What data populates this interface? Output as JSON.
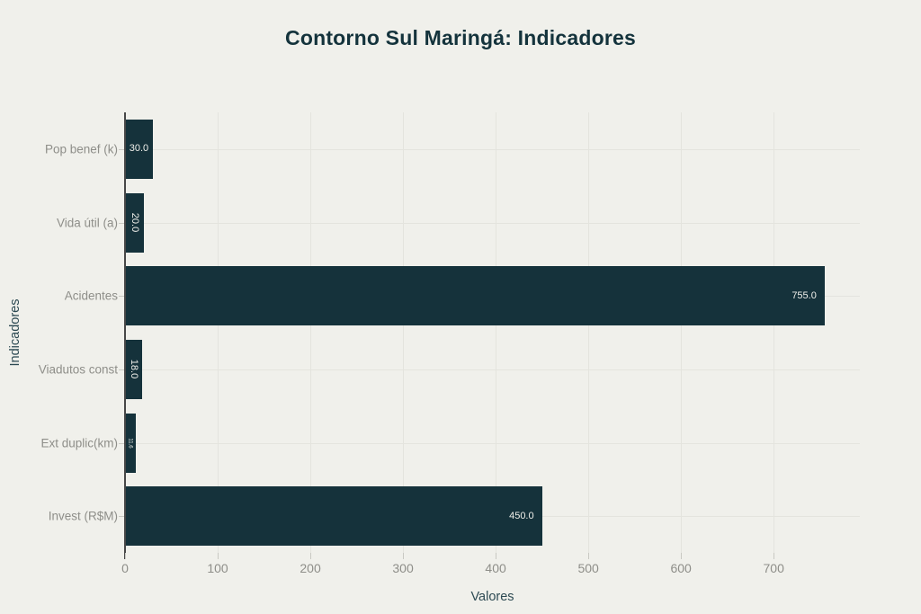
{
  "title": "Contorno Sul Maringá: Indicadores",
  "chart_data": {
    "type": "bar",
    "orientation": "horizontal",
    "title": "Contorno Sul Maringá: Indicadores",
    "xlabel": "Valores",
    "ylabel": "Indicadores",
    "categories": [
      "Pop benef (k)",
      "Vida útil (a)",
      "Acidentes",
      "Viadutos const",
      "Ext duplic(km)",
      "Invest (R$M)"
    ],
    "values": [
      30.0,
      20.0,
      755.0,
      18.0,
      11.6,
      450.0
    ],
    "bar_labels": [
      {
        "text": "30.0",
        "rotated": false,
        "align": "center",
        "size": 11
      },
      {
        "text": "20.0",
        "rotated": true,
        "align": "center",
        "size": 11
      },
      {
        "text": "755.0",
        "rotated": false,
        "align": "right",
        "size": 11
      },
      {
        "text": "18.0",
        "rotated": true,
        "align": "center",
        "size": 11
      },
      {
        "text": "11.6",
        "rotated": true,
        "align": "center",
        "size": 6
      },
      {
        "text": "450.0",
        "rotated": false,
        "align": "right",
        "size": 11
      }
    ],
    "x_ticks": [
      "0",
      "100",
      "200",
      "300",
      "400",
      "500",
      "600",
      "700"
    ],
    "x_tick_values": [
      0,
      100,
      200,
      300,
      400,
      500,
      600,
      700
    ],
    "xlim": [
      0,
      793
    ],
    "grid": true,
    "legend": false,
    "colors": {
      "bar": "#15323b",
      "background": "#f0f0eb",
      "title": "#14333c",
      "axis_title": "#2d4a53",
      "tick_label": "#8e8e89",
      "gridline": "#e4e4de",
      "axis_line": "#474747",
      "bar_label": "#f0f0eb"
    }
  }
}
